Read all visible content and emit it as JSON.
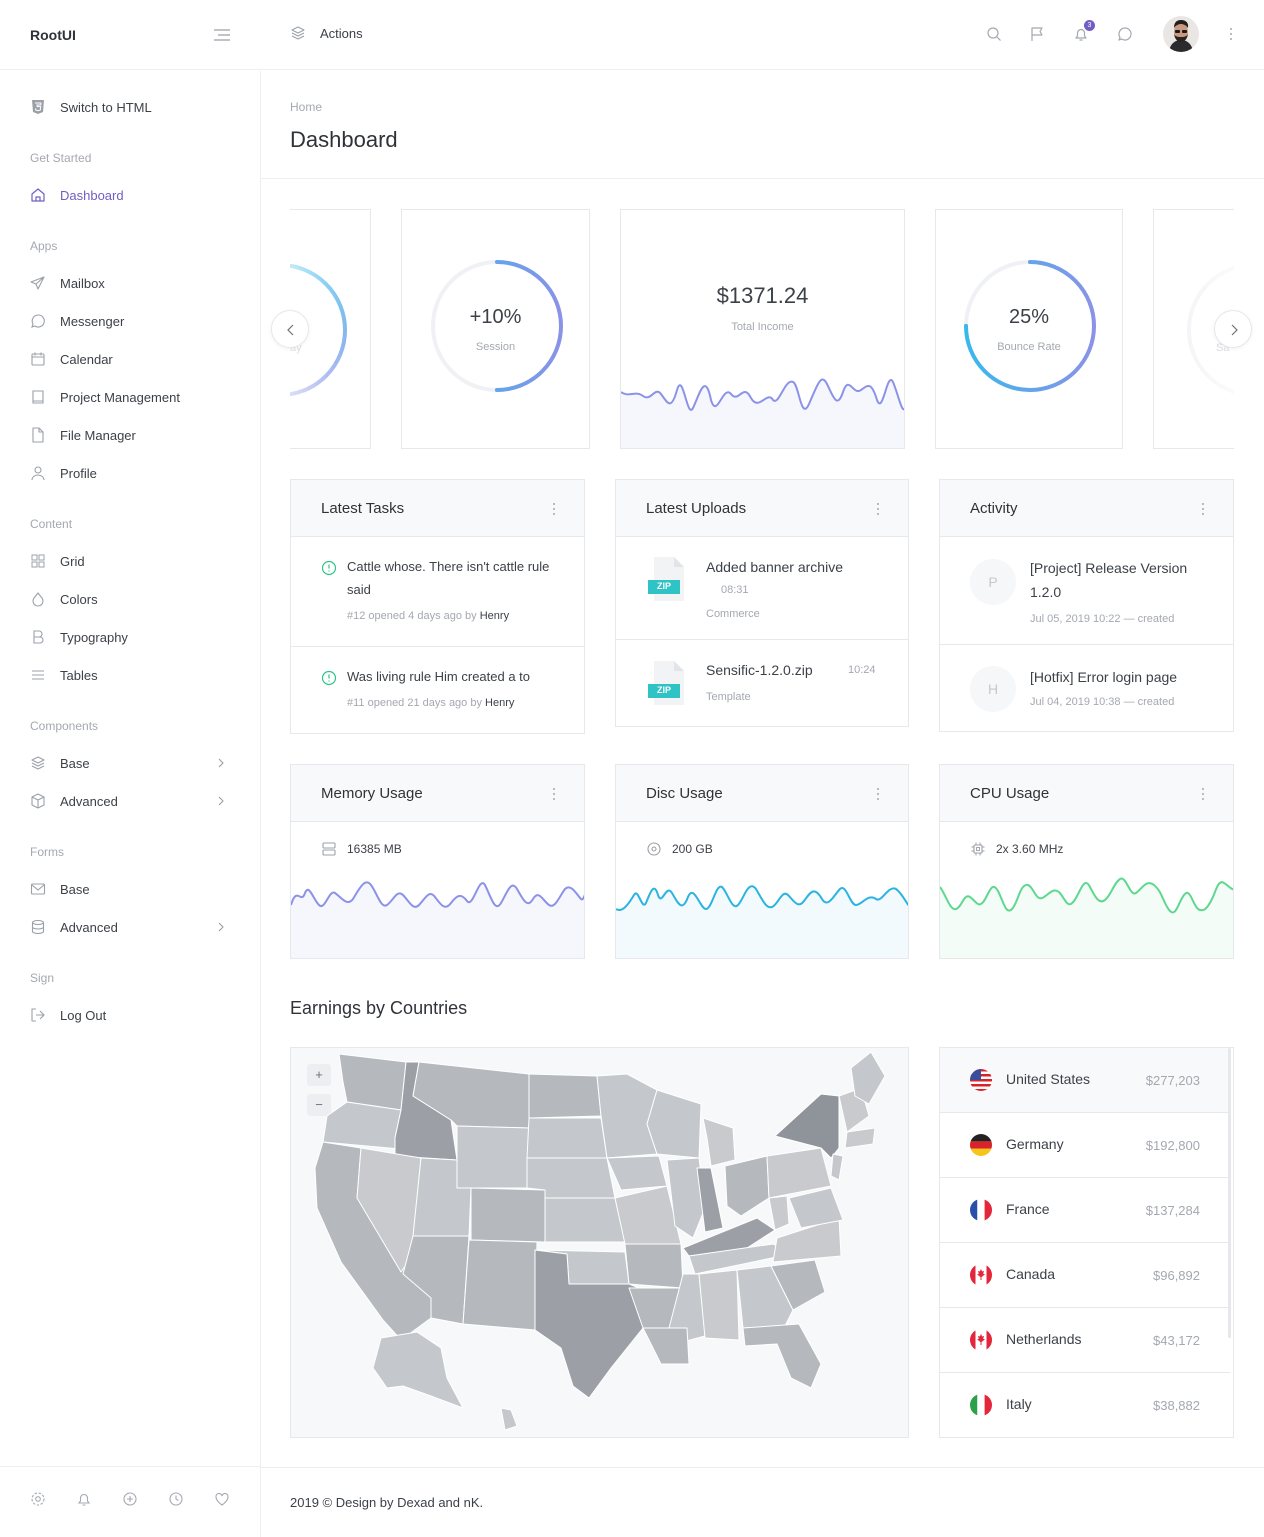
{
  "app": {
    "brand": "RootUI"
  },
  "topbar": {
    "actions_label": "Actions",
    "notification_count": "3"
  },
  "sidebar": {
    "switch_label": "Switch to HTML",
    "sections": {
      "get_started": "Get Started",
      "apps": "Apps",
      "content": "Content",
      "components": "Components",
      "forms": "Forms",
      "sign": "Sign"
    },
    "items": {
      "dashboard": "Dashboard",
      "mailbox": "Mailbox",
      "messenger": "Messenger",
      "calendar": "Calendar",
      "project_management": "Project Management",
      "file_manager": "File Manager",
      "profile": "Profile",
      "grid": "Grid",
      "colors": "Colors",
      "typography": "Typography",
      "tables": "Tables",
      "comp_base": "Base",
      "comp_advanced": "Advanced",
      "forms_base": "Base",
      "forms_advanced": "Advanced",
      "logout": "Log Out"
    }
  },
  "page": {
    "breadcrumb": "Home",
    "title": "Dashboard"
  },
  "stats": {
    "left_partial_label": "ay",
    "session": {
      "value": "+10%",
      "label": "Session",
      "progress": 0.5
    },
    "income": {
      "value": "$1371.24",
      "label": "Total Income"
    },
    "bounce": {
      "value": "25%",
      "label": "Bounce Rate",
      "progress": 0.75
    },
    "right_partial_label": "Sa"
  },
  "tasks": {
    "title": "Latest Tasks",
    "items": [
      {
        "text": "Cattle whose. There isn't cattle rule said",
        "meta": "#12 opened 4 days ago by",
        "user": "Henry"
      },
      {
        "text": "Was living rule Him created a to",
        "meta": "#11 opened 21 days ago by",
        "user": "Henry"
      }
    ]
  },
  "uploads": {
    "title": "Latest Uploads",
    "items": [
      {
        "name": "Added banner archive",
        "time": "08:31",
        "category": "Commerce",
        "badge": "ZIP"
      },
      {
        "name": "Sensific-1.2.0.zip",
        "time": "10:24",
        "category": "Template",
        "badge": "ZIP"
      }
    ]
  },
  "activity": {
    "title": "Activity",
    "items": [
      {
        "initial": "P",
        "title": "[Project] Release Version 1.2.0",
        "meta": "Jul 05, 2019 10:22 — created"
      },
      {
        "initial": "H",
        "title": "[Hotfix] Error login page",
        "meta": "Jul 04, 2019 10:38 — created"
      }
    ]
  },
  "usage": {
    "memory": {
      "title": "Memory Usage",
      "value": "16385 MB",
      "color": "#8b92e8"
    },
    "disc": {
      "title": "Disc Usage",
      "value": "200 GB",
      "color": "#2bb4e0"
    },
    "cpu": {
      "title": "CPU Usage",
      "value": "2x 3.60 MHz",
      "color": "#5fd88f"
    }
  },
  "earnings": {
    "title": "Earnings by Countries",
    "countries": [
      {
        "name": "United States",
        "value": "$277,203",
        "flag": "us"
      },
      {
        "name": "Germany",
        "value": "$192,800",
        "flag": "de"
      },
      {
        "name": "France",
        "value": "$137,284",
        "flag": "fr"
      },
      {
        "name": "Canada",
        "value": "$96,892",
        "flag": "ca"
      },
      {
        "name": "Netherlands",
        "value": "$43,172",
        "flag": "ca"
      },
      {
        "name": "Italy",
        "value": "$38,882",
        "flag": "it"
      }
    ]
  },
  "map": {
    "zoom_in": "+",
    "zoom_out": "−"
  },
  "footer": {
    "text": "2019 © Design by Dexad and nK."
  }
}
